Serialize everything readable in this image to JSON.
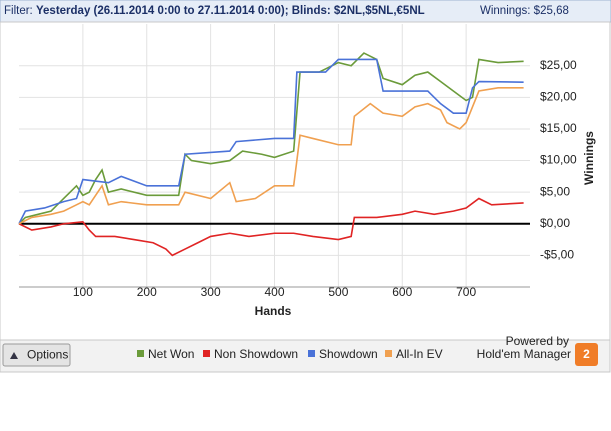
{
  "header": {
    "filter_label": "Filter:",
    "filter_text": "Yesterday (26.11.2014 0:00 to 27.11.2014 0:00); Blinds: $2NL,$5NL,€5NL",
    "winnings_text": "Winnings: $25,68"
  },
  "chart_data": {
    "type": "line",
    "x_label": "Hands",
    "y_label": "Winnings",
    "xlim": [
      0,
      800
    ],
    "xticks": [
      100,
      200,
      300,
      400,
      500,
      600,
      700
    ],
    "ylim": [
      -10,
      31.6
    ],
    "yticks": [
      {
        "value": -5,
        "label": "-$5,00"
      },
      {
        "value": 0,
        "label": "$0,00"
      },
      {
        "value": 5,
        "label": "$5,00"
      },
      {
        "value": 10,
        "label": "$10,00"
      },
      {
        "value": 15,
        "label": "$15,00"
      },
      {
        "value": 20,
        "label": "$20,00"
      },
      {
        "value": 25,
        "label": "$25,00"
      }
    ],
    "grid": true,
    "legend": "bottom",
    "series": [
      {
        "name": "Net Won",
        "color": "#6b9b3a",
        "x": [
          0,
          10,
          30,
          50,
          60,
          70,
          80,
          90,
          100,
          110,
          120,
          130,
          140,
          160,
          200,
          250,
          260,
          270,
          300,
          330,
          350,
          380,
          400,
          430,
          440,
          470,
          500,
          520,
          540,
          560,
          570,
          600,
          620,
          640,
          660,
          680,
          700,
          710,
          720,
          750,
          790
        ],
        "values": [
          0,
          1,
          1.5,
          2,
          3,
          4,
          5,
          6,
          4.5,
          5,
          7,
          8.5,
          5,
          5.5,
          4.5,
          4.5,
          11,
          10,
          9.5,
          10,
          11.5,
          11,
          10.5,
          11.5,
          24,
          24,
          25.5,
          25,
          27,
          26,
          23,
          22,
          23.5,
          24,
          22.5,
          21,
          19.5,
          20,
          26,
          25.5,
          25.7
        ]
      },
      {
        "name": "Non Showdown",
        "color": "#e02424",
        "x": [
          0,
          20,
          50,
          70,
          100,
          110,
          120,
          150,
          180,
          210,
          230,
          240,
          260,
          280,
          300,
          330,
          360,
          400,
          430,
          460,
          500,
          520,
          525,
          560,
          600,
          620,
          650,
          680,
          700,
          720,
          740,
          790
        ],
        "values": [
          0,
          -1,
          -0.5,
          0,
          0.3,
          -1,
          -2,
          -2,
          -2.5,
          -3,
          -4,
          -5,
          -4,
          -3,
          -2,
          -1.5,
          -2,
          -1.5,
          -1.5,
          -2,
          -2.5,
          -2,
          1,
          1,
          1.5,
          2,
          1.5,
          2,
          2.5,
          4,
          3,
          3.3
        ]
      },
      {
        "name": "Showdown",
        "color": "#4a72d8",
        "x": [
          0,
          10,
          40,
          70,
          90,
          100,
          140,
          160,
          200,
          250,
          260,
          330,
          340,
          400,
          430,
          435,
          480,
          500,
          560,
          570,
          640,
          660,
          680,
          700,
          710,
          720,
          790
        ],
        "values": [
          0,
          2,
          2.5,
          3.5,
          4,
          7,
          6.5,
          7.5,
          6,
          6,
          11,
          11.5,
          13,
          13.5,
          13.5,
          24,
          24,
          26,
          26,
          21,
          21,
          19,
          17.5,
          17.5,
          21.5,
          22.5,
          22.4
        ]
      },
      {
        "name": "All-In EV",
        "color": "#f0a050",
        "x": [
          0,
          20,
          50,
          70,
          90,
          100,
          110,
          130,
          140,
          160,
          200,
          250,
          260,
          300,
          330,
          340,
          370,
          400,
          430,
          440,
          460,
          500,
          520,
          525,
          550,
          570,
          600,
          620,
          640,
          660,
          670,
          690,
          700,
          720,
          750,
          790
        ],
        "values": [
          0,
          1,
          1.5,
          2,
          3,
          3.5,
          3,
          6,
          3,
          3.5,
          3,
          3,
          5,
          4,
          6.5,
          3.5,
          4,
          6,
          6,
          14,
          13.5,
          12.5,
          12.5,
          17,
          19,
          17.5,
          17,
          18.5,
          19,
          18,
          16,
          15,
          16,
          21,
          21.5,
          21.5
        ]
      }
    ]
  },
  "toolbar": {
    "options": "Options",
    "powered_by": "Powered by",
    "brand": "Hold'em Manager",
    "logo": "2"
  }
}
